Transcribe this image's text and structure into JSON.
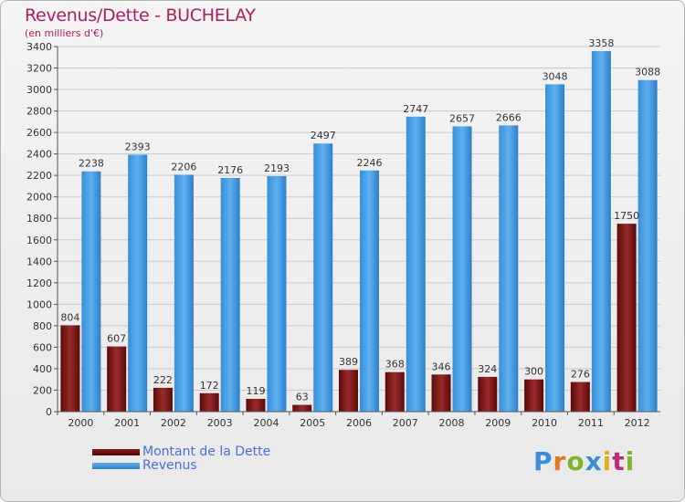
{
  "title": "Revenus/Dette - BUCHELAY",
  "subtitle": "(en milliers d'€)",
  "logo": "Proxiti",
  "colors": {
    "dette": "#7a1a1a",
    "revenus": "#4aa0e6",
    "title": "#b01c5e",
    "legend_text": "#4a6ee0"
  },
  "chart_data": {
    "type": "bar",
    "title": "Revenus/Dette - BUCHELAY",
    "subtitle": "(en milliers d'€)",
    "categories": [
      "2000",
      "2001",
      "2002",
      "2003",
      "2004",
      "2005",
      "2006",
      "2007",
      "2008",
      "2009",
      "2010",
      "2011",
      "2012"
    ],
    "series": [
      {
        "name": "Montant de la Dette",
        "values": [
          804,
          607,
          222,
          172,
          119,
          63,
          389,
          368,
          346,
          324,
          300,
          276,
          1750
        ]
      },
      {
        "name": "Revenus",
        "values": [
          2238,
          2393,
          2206,
          2176,
          2193,
          2497,
          2246,
          2747,
          2657,
          2666,
          3048,
          3358,
          3088
        ]
      }
    ],
    "ylim": [
      0,
      3400
    ],
    "yticks": [
      0,
      200,
      400,
      600,
      800,
      1000,
      1200,
      1400,
      1600,
      1800,
      2000,
      2200,
      2400,
      2600,
      2800,
      3000,
      3200,
      3400
    ],
    "grid": true,
    "legend": "bottom-left"
  }
}
